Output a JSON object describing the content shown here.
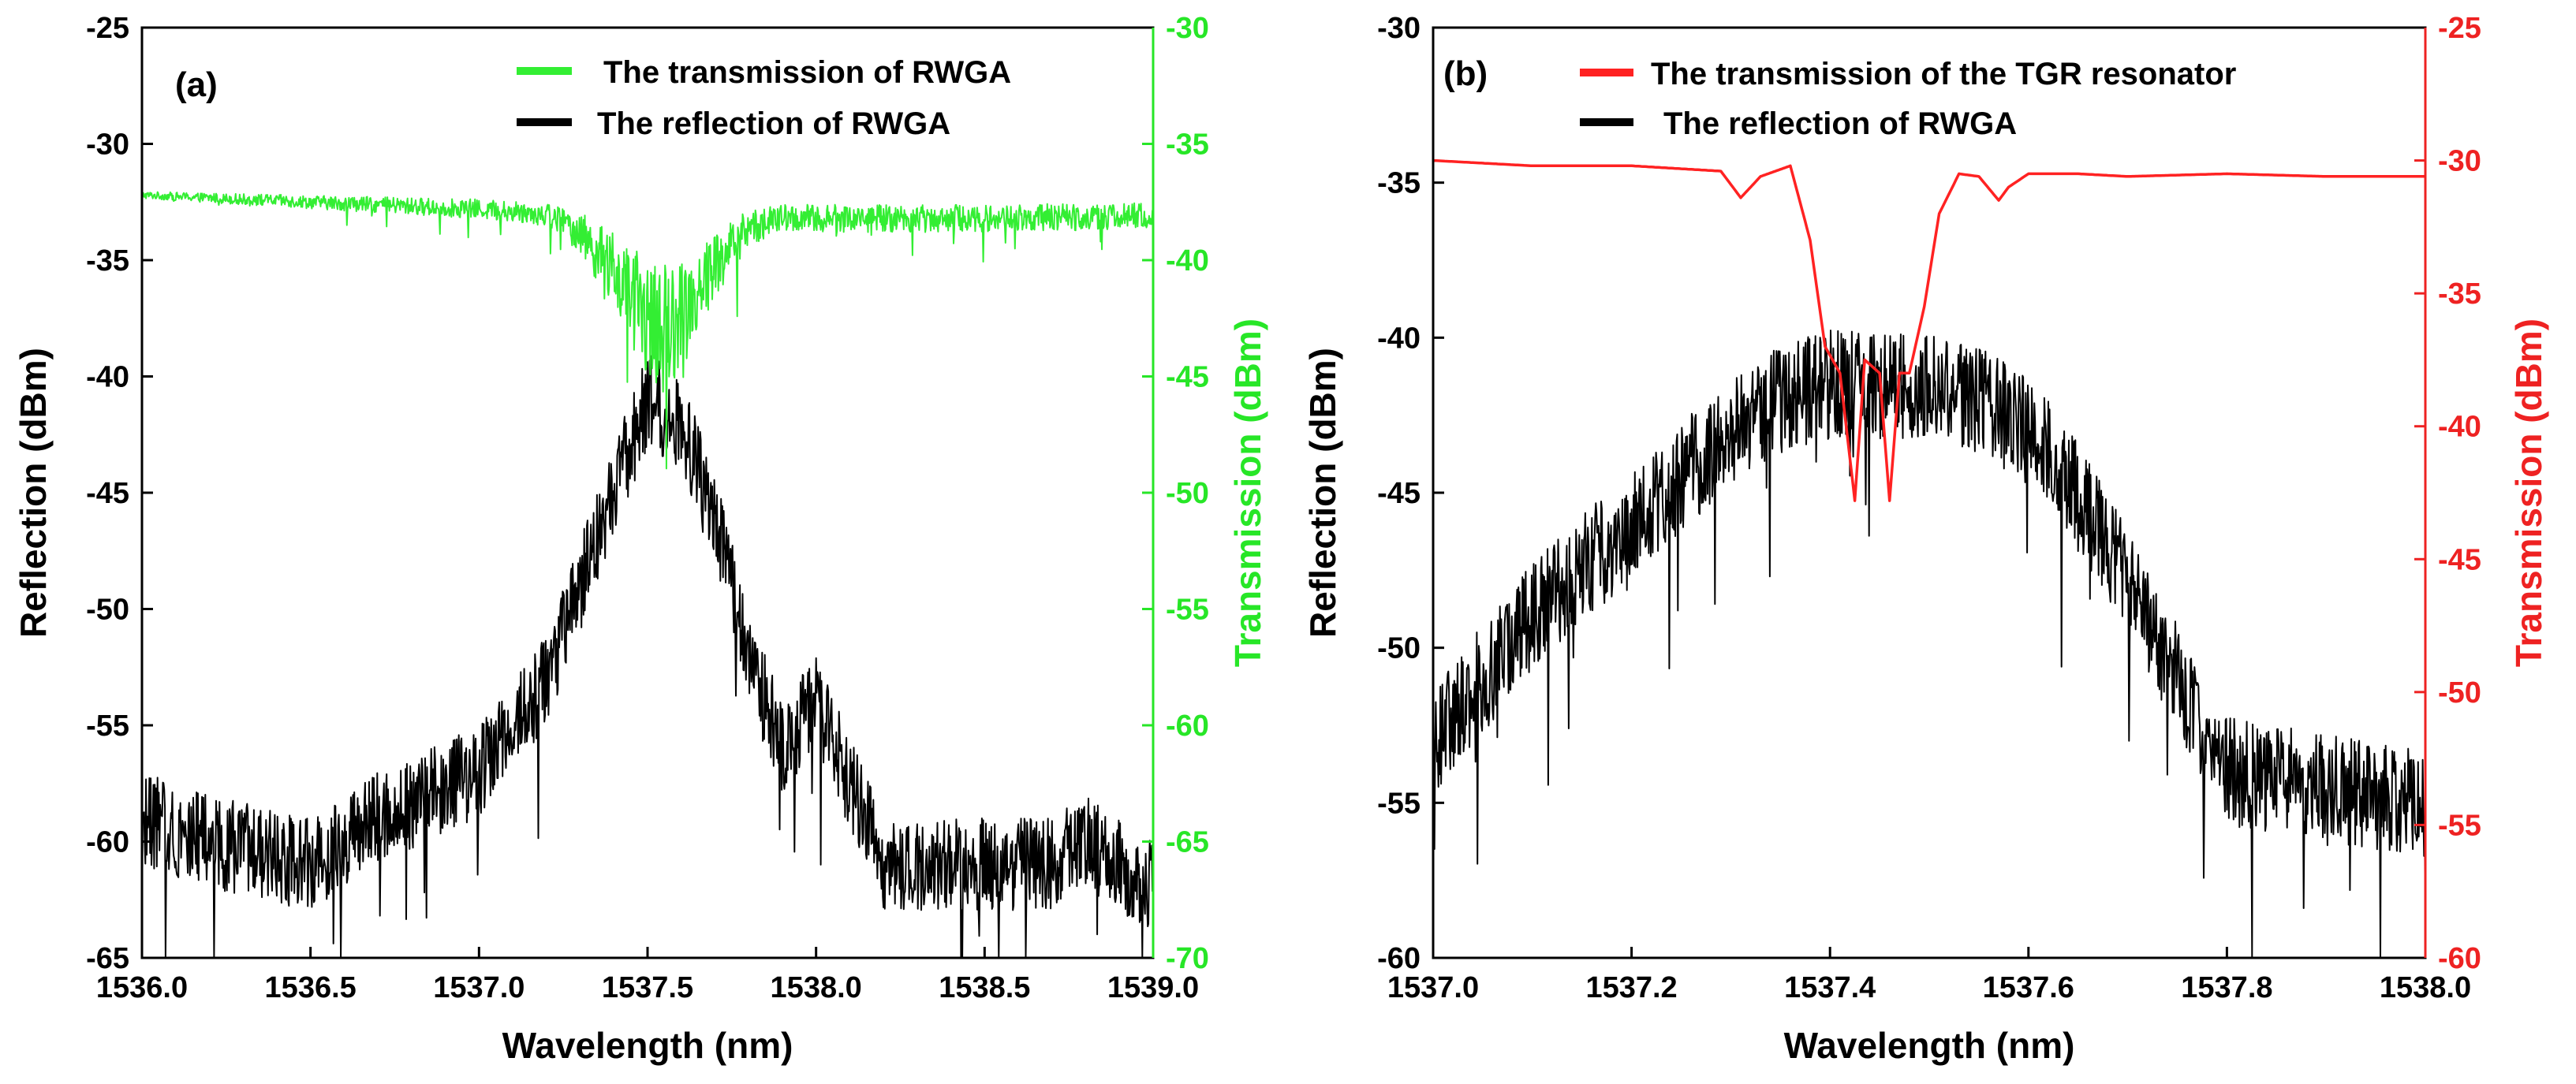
{
  "chart_data": [
    {
      "panel": "(a)",
      "type": "line",
      "xlabel": "Wavelength (nm)",
      "ylabel_left": "Reflection (dBm)",
      "ylabel_right": "Transmission (dBm)",
      "xlim": [
        1536.0,
        1539.0
      ],
      "ylim_left": [
        -65,
        -25
      ],
      "ylim_right": [
        -70,
        -30
      ],
      "x_ticks": [
        "1536.0",
        "1536.5",
        "1537.0",
        "1537.5",
        "1538.0",
        "1538.5",
        "1539.0"
      ],
      "y_ticks_left": [
        "-25",
        "-30",
        "-35",
        "-40",
        "-45",
        "-50",
        "-55",
        "-60",
        "-65"
      ],
      "y_ticks_right": [
        "-30",
        "-35",
        "-40",
        "-45",
        "-50",
        "-55",
        "-60",
        "-65",
        "-70"
      ],
      "right_axis_color": "#27e627",
      "legend_position": "top-right",
      "series": [
        {
          "name": "The transmission of RWGA",
          "axis": "right",
          "color": "#33ee33",
          "noise": 5.5,
          "x": [
            1536.0,
            1536.5,
            1537.0,
            1537.2,
            1537.3,
            1537.4,
            1537.5,
            1537.55,
            1537.6,
            1537.7,
            1537.8,
            1537.9,
            1538.0,
            1538.5,
            1539.0
          ],
          "y": [
            -37.2,
            -37.5,
            -37.8,
            -38.0,
            -38.8,
            -40.5,
            -42.5,
            -43.0,
            -42.2,
            -40.2,
            -38.6,
            -38.2,
            -38.2,
            -38.2,
            -38.1
          ]
        },
        {
          "name": "The reflection of RWGA",
          "axis": "left",
          "color": "#000000",
          "noise": 4.0,
          "x": [
            1536.0,
            1536.2,
            1536.5,
            1536.7,
            1537.0,
            1537.2,
            1537.4,
            1537.5,
            1537.6,
            1537.7,
            1537.8,
            1537.9,
            1538.0,
            1538.2,
            1538.5,
            1538.7,
            1538.8,
            1539.0
          ],
          "y": [
            -59,
            -60,
            -61,
            -59,
            -57,
            -53,
            -45,
            -41,
            -42,
            -46,
            -52,
            -56,
            -54,
            -61,
            -61,
            -61,
            -60,
            -62
          ]
        }
      ]
    },
    {
      "panel": "(b)",
      "type": "line",
      "xlabel": "Wavelength (nm)",
      "ylabel_left": "Reflection (dBm)",
      "ylabel_right": "Transmission (dBm)",
      "xlim": [
        1537.0,
        1538.0
      ],
      "ylim_left": [
        -60,
        -30
      ],
      "ylim_right": [
        -60,
        -25
      ],
      "x_ticks": [
        "1537.0",
        "1537.2",
        "1537.4",
        "1537.6",
        "1537.8",
        "1538.0"
      ],
      "y_ticks_left": [
        "-30",
        "-35",
        "-40",
        "-45",
        "-50",
        "-55",
        "-60"
      ],
      "y_ticks_right": [
        "-25",
        "-30",
        "-35",
        "-40",
        "-45",
        "-50",
        "-55",
        "-60"
      ],
      "right_axis_color": "#ee2222",
      "legend_position": "top-left",
      "series": [
        {
          "name": "The transmission of the TGR resonator",
          "axis": "right",
          "color": "#ff2222",
          "noise": 0,
          "x": [
            1537.0,
            1537.1,
            1537.2,
            1537.29,
            1537.31,
            1537.33,
            1537.36,
            1537.38,
            1537.395,
            1537.41,
            1537.425,
            1537.435,
            1537.45,
            1537.46,
            1537.47,
            1537.48,
            1537.495,
            1537.51,
            1537.53,
            1537.55,
            1537.57,
            1537.58,
            1537.6,
            1537.65,
            1537.7,
            1537.8,
            1537.9,
            1538.0
          ],
          "y": [
            -30.0,
            -30.2,
            -30.2,
            -30.4,
            -31.4,
            -30.6,
            -30.2,
            -33.0,
            -37.0,
            -38.0,
            -42.8,
            -37.5,
            -38.0,
            -42.8,
            -38.0,
            -38.0,
            -35.5,
            -32.0,
            -30.5,
            -30.6,
            -31.5,
            -31.0,
            -30.5,
            -30.5,
            -30.6,
            -30.5,
            -30.6,
            -30.6
          ]
        },
        {
          "name": "The reflection of RWGA",
          "axis": "left",
          "color": "#000000",
          "noise": 3.5,
          "x": [
            1537.0,
            1537.1,
            1537.2,
            1537.3,
            1537.35,
            1537.4,
            1537.5,
            1537.55,
            1537.6,
            1537.65,
            1537.7,
            1537.75,
            1537.8,
            1537.9,
            1538.0
          ],
          "y": [
            -53,
            -49,
            -46,
            -43,
            -42,
            -41.5,
            -41.5,
            -42,
            -43,
            -45,
            -48,
            -51,
            -54,
            -54.5,
            -55
          ]
        }
      ]
    }
  ]
}
